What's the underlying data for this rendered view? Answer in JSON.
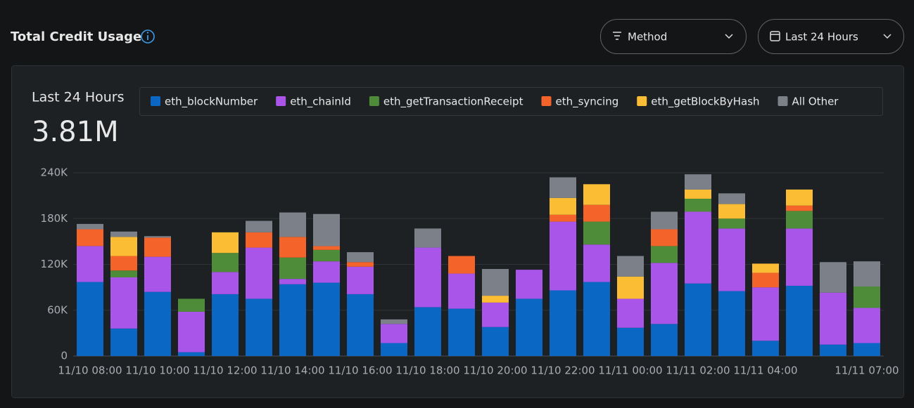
{
  "header": {
    "title": "Total Credit Usage",
    "filters": [
      "Method",
      "Last 24 Hours"
    ]
  },
  "summary": {
    "period": "Last 24 Hours",
    "total": "3.81M"
  },
  "chart_data": {
    "type": "stacked-bar",
    "categories": [
      "11/10 08:00",
      null,
      "11/10 10:00",
      null,
      "11/10 12:00",
      null,
      "11/10 14:00",
      null,
      "11/10 16:00",
      null,
      "11/10 18:00",
      null,
      "11/10 20:00",
      null,
      "11/10 22:00",
      null,
      "11/11 00:00",
      null,
      "11/11 02:00",
      null,
      "11/11 04:00",
      null,
      null,
      "11/11 07:00"
    ],
    "series": [
      {
        "name": "eth_blockNumber",
        "color": "#0a68c4",
        "values": [
          97000,
          36000,
          84000,
          5000,
          81000,
          75000,
          94000,
          96000,
          81000,
          17000,
          64000,
          62000,
          38000,
          75000,
          86000,
          97000,
          37000,
          42000,
          95000,
          85000,
          20000,
          92000,
          15000,
          17000
        ]
      },
      {
        "name": "eth_chainId",
        "color": "#aa55ea",
        "values": [
          47000,
          67000,
          46000,
          53000,
          29000,
          67000,
          7000,
          28000,
          36000,
          25000,
          78000,
          46000,
          32000,
          38000,
          90000,
          49000,
          38000,
          80000,
          94000,
          82000,
          70000,
          75000,
          68000,
          46000
        ]
      },
      {
        "name": "eth_getTransactionReceipt",
        "color": "#4e8c3a",
        "values": [
          0,
          9000,
          0,
          17000,
          25000,
          0,
          28000,
          15000,
          0,
          0,
          0,
          0,
          0,
          0,
          0,
          30000,
          0,
          22000,
          17000,
          13000,
          0,
          23000,
          0,
          28000
        ]
      },
      {
        "name": "eth_syncing",
        "color": "#f4642a",
        "values": [
          22000,
          19000,
          25000,
          0,
          0,
          20000,
          27000,
          5000,
          6000,
          0,
          0,
          23000,
          0,
          0,
          9000,
          22000,
          0,
          22000,
          0,
          0,
          19000,
          7000,
          0,
          0
        ]
      },
      {
        "name": "eth_getBlockByHash",
        "color": "#fbbd33",
        "values": [
          0,
          25000,
          0,
          0,
          27000,
          0,
          0,
          0,
          0,
          0,
          0,
          0,
          9000,
          0,
          22000,
          27000,
          29000,
          0,
          12000,
          19000,
          12000,
          21000,
          0,
          0
        ]
      },
      {
        "name": "All Other",
        "color": "#7b8089",
        "values": [
          7000,
          7000,
          2000,
          0,
          0,
          15000,
          32000,
          42000,
          13000,
          6000,
          25000,
          0,
          35000,
          0,
          27000,
          0,
          27000,
          23000,
          20000,
          14000,
          0,
          0,
          40000,
          33000
        ]
      }
    ],
    "ylim": [
      0,
      240000
    ],
    "yticks": [
      {
        "value": 0,
        "label": "0"
      },
      {
        "value": 60000,
        "label": "60K"
      },
      {
        "value": 120000,
        "label": "120K"
      },
      {
        "value": 180000,
        "label": "180K"
      },
      {
        "value": 240000,
        "label": "240K"
      }
    ],
    "grid": true
  }
}
